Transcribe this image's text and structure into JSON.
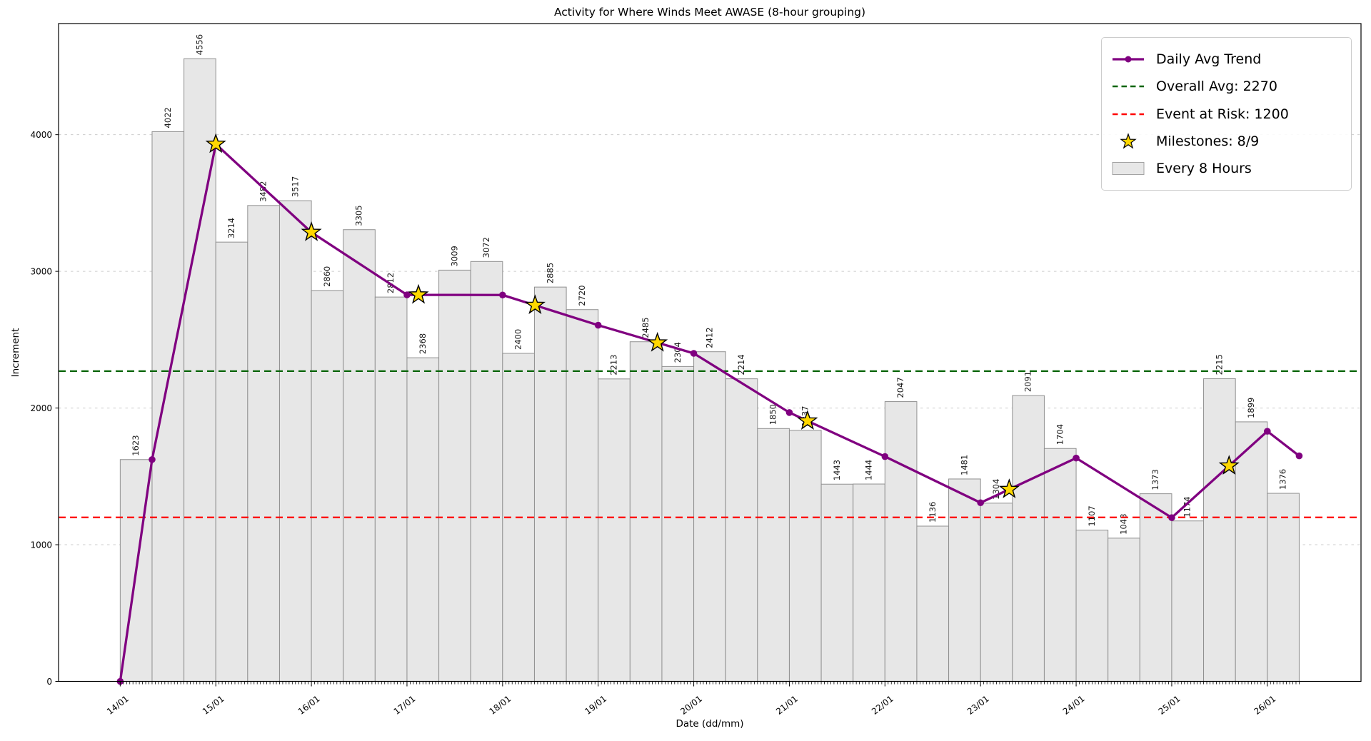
{
  "title": "Activity for Where Winds Meet AWASE (8-hour grouping)",
  "axes": {
    "xlabel": "Date (dd/mm)",
    "ylabel": "Increment",
    "yticks": [
      0,
      1000,
      2000,
      3000,
      4000
    ],
    "xtick_labels": [
      "14/01",
      "15/01",
      "16/01",
      "17/01",
      "18/01",
      "19/01",
      "20/01",
      "21/01",
      "22/01",
      "23/01",
      "24/01",
      "25/01",
      "26/01"
    ],
    "ylim": [
      0,
      4813
    ],
    "grid": "horizontal-dashed"
  },
  "legend": {
    "position": "top-right",
    "items": [
      {
        "label": "Daily Avg Trend",
        "swatch": "line-marker",
        "color": "#800080"
      },
      {
        "label": "Overall Avg: 2270",
        "swatch": "dashed-line",
        "color": "#006400"
      },
      {
        "label": "Event at Risk: 1200",
        "swatch": "dashed-line",
        "color": "#ff0000"
      },
      {
        "label": "Milestones: 8/9",
        "swatch": "star",
        "color": "#FFD700"
      },
      {
        "label": "Every 8 Hours",
        "swatch": "rect",
        "color": "#e7e7e7"
      }
    ]
  },
  "chart_data": {
    "type": "bar",
    "title": "Activity for Where Winds Meet AWASE (8-hour grouping)",
    "xlabel": "Date (dd/mm)",
    "ylabel": "Increment",
    "bar_series_name": "Every 8 Hours",
    "bars_per_day": 3,
    "hours_per_bar": 8,
    "start_day_label": "14/01",
    "bar_color": "#e7e7e7",
    "bar_edge_color": "#909090",
    "bar_values": [
      1623,
      4022,
      4556,
      3214,
      3482,
      3517,
      2860,
      3305,
      2812,
      2368,
      3009,
      3072,
      2400,
      2885,
      2720,
      2213,
      2485,
      2304,
      2412,
      2214,
      1850,
      1837,
      1443,
      1444,
      2047,
      1136,
      1481,
      1304,
      2091,
      1704,
      1107,
      1048,
      1373,
      1174,
      2215,
      1899,
      1376
    ],
    "trend": {
      "name": "Daily Avg Trend",
      "color": "#800080",
      "points": [
        {
          "t": 0,
          "v": 0
        },
        {
          "t": 0.3333,
          "v": 1623
        },
        {
          "t": 1,
          "v": 3931
        },
        {
          "t": 2,
          "v": 3286
        },
        {
          "t": 3,
          "v": 2828
        },
        {
          "t": 4,
          "v": 2827
        },
        {
          "t": 5,
          "v": 2606
        },
        {
          "t": 6,
          "v": 2400
        },
        {
          "t": 7,
          "v": 1967
        },
        {
          "t": 8,
          "v": 1645
        },
        {
          "t": 9,
          "v": 1307
        },
        {
          "t": 10,
          "v": 1634
        },
        {
          "t": 11,
          "v": 1198
        },
        {
          "t": 12,
          "v": 1830
        },
        {
          "t": 12.3333,
          "v": 1650
        }
      ]
    },
    "milestones": {
      "name": "Milestones",
      "achieved": 8,
      "total": 9,
      "color": "#FFD700",
      "edge_color": "#000000",
      "points": [
        {
          "t": 1,
          "v": 3931
        },
        {
          "t": 2,
          "v": 3286
        },
        {
          "t": 3.12,
          "v": 2828
        },
        {
          "t": 4.34,
          "v": 2752
        },
        {
          "t": 5.62,
          "v": 2477
        },
        {
          "t": 7.19,
          "v": 1906
        },
        {
          "t": 9.3,
          "v": 1405
        },
        {
          "t": 11.6,
          "v": 1577
        }
      ]
    },
    "hlines": [
      {
        "name": "Overall Avg",
        "value": 2270,
        "color": "#006400"
      },
      {
        "name": "Event at Risk",
        "value": 1200,
        "color": "#ff0000"
      }
    ]
  }
}
